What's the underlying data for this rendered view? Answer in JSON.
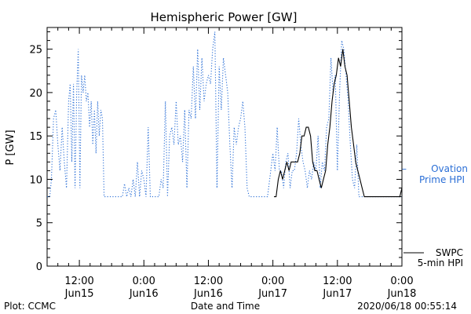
{
  "chart_data": {
    "type": "line",
    "title": "Hemispheric Power [GW]",
    "xlabel": "Date and Time",
    "ylabel": "P [GW]",
    "ylim": [
      0,
      27.5
    ],
    "xlim": [
      -18,
      48
    ],
    "yticks": [
      0,
      5,
      10,
      15,
      20,
      25
    ],
    "xticks": [
      {
        "x": -12,
        "time": "12:00",
        "date": "Jun15"
      },
      {
        "x": 0,
        "time": "0:00",
        "date": "Jun16"
      },
      {
        "x": 12,
        "time": "12:00",
        "date": "Jun16"
      },
      {
        "x": 24,
        "time": "0:00",
        "date": "Jun17"
      },
      {
        "x": 36,
        "time": "12:00",
        "date": "Jun17"
      },
      {
        "x": 48,
        "time": "0:00",
        "date": "Jun18"
      }
    ],
    "grid": false,
    "series": [
      {
        "name": "Ovation Prime HPI",
        "color": "#2b6fd6",
        "style": "dotted",
        "points": [
          [
            -18,
            8
          ],
          [
            -17.5,
            8
          ],
          [
            -17.2,
            10
          ],
          [
            -16.8,
            17
          ],
          [
            -16.4,
            18
          ],
          [
            -16,
            14
          ],
          [
            -15.6,
            11
          ],
          [
            -15.2,
            16
          ],
          [
            -14.8,
            12
          ],
          [
            -14.4,
            9
          ],
          [
            -14,
            19
          ],
          [
            -13.7,
            21
          ],
          [
            -13.4,
            12
          ],
          [
            -13.1,
            21
          ],
          [
            -12.8,
            9
          ],
          [
            -12.5,
            20
          ],
          [
            -12.2,
            25
          ],
          [
            -11.9,
            9
          ],
          [
            -11.6,
            22
          ],
          [
            -11.3,
            20
          ],
          [
            -11,
            22
          ],
          [
            -10.7,
            19
          ],
          [
            -10.4,
            20
          ],
          [
            -10.1,
            16
          ],
          [
            -9.8,
            19
          ],
          [
            -9.5,
            14
          ],
          [
            -9.2,
            18
          ],
          [
            -8.9,
            13
          ],
          [
            -8.6,
            19
          ],
          [
            -8.3,
            15
          ],
          [
            -8,
            18
          ],
          [
            -7.7,
            17
          ],
          [
            -7.4,
            8
          ],
          [
            -7,
            8
          ],
          [
            -6,
            8
          ],
          [
            -5,
            8
          ],
          [
            -4,
            8
          ],
          [
            -3.6,
            9.5
          ],
          [
            -3.2,
            8
          ],
          [
            -2.8,
            9
          ],
          [
            -2.4,
            8
          ],
          [
            -2,
            10
          ],
          [
            -1.6,
            8
          ],
          [
            -1.2,
            12
          ],
          [
            -0.8,
            8
          ],
          [
            -0.4,
            11
          ],
          [
            0,
            10
          ],
          [
            0.4,
            8
          ],
          [
            0.8,
            16
          ],
          [
            1.2,
            8
          ],
          [
            1.6,
            8
          ],
          [
            2,
            8
          ],
          [
            2.4,
            8
          ],
          [
            2.8,
            8
          ],
          [
            3.2,
            10
          ],
          [
            3.6,
            9
          ],
          [
            4,
            19
          ],
          [
            4.4,
            8
          ],
          [
            4.8,
            15
          ],
          [
            5.2,
            16
          ],
          [
            5.6,
            14
          ],
          [
            6,
            19
          ],
          [
            6.4,
            14
          ],
          [
            6.8,
            15
          ],
          [
            7.2,
            12
          ],
          [
            7.6,
            18
          ],
          [
            8,
            9
          ],
          [
            8.4,
            18
          ],
          [
            8.8,
            17
          ],
          [
            9.2,
            23
          ],
          [
            9.6,
            17
          ],
          [
            10,
            25
          ],
          [
            10.4,
            18
          ],
          [
            10.8,
            24
          ],
          [
            11.2,
            19
          ],
          [
            11.6,
            21
          ],
          [
            12,
            22
          ],
          [
            12.4,
            21
          ],
          [
            12.8,
            25
          ],
          [
            13.2,
            27
          ],
          [
            13.6,
            9
          ],
          [
            14,
            23
          ],
          [
            14.4,
            18
          ],
          [
            14.8,
            24
          ],
          [
            15.2,
            22
          ],
          [
            15.6,
            20
          ],
          [
            16,
            14
          ],
          [
            16.4,
            9
          ],
          [
            16.8,
            16
          ],
          [
            17.2,
            14
          ],
          [
            17.6,
            16
          ],
          [
            18,
            17
          ],
          [
            18.4,
            19
          ],
          [
            18.8,
            16
          ],
          [
            19.2,
            9
          ],
          [
            19.6,
            8
          ],
          [
            20,
            8
          ],
          [
            21,
            8
          ],
          [
            22,
            8
          ],
          [
            23,
            8
          ],
          [
            23.6,
            11
          ],
          [
            24,
            13
          ],
          [
            24.4,
            11
          ],
          [
            24.8,
            16
          ],
          [
            25.2,
            11
          ],
          [
            25.6,
            11
          ],
          [
            26,
            9
          ],
          [
            26.4,
            12
          ],
          [
            26.8,
            13
          ],
          [
            27.2,
            9
          ],
          [
            27.6,
            11
          ],
          [
            28,
            11
          ],
          [
            28.4,
            13
          ],
          [
            28.8,
            17
          ],
          [
            29.2,
            14
          ],
          [
            29.6,
            12
          ],
          [
            30,
            11
          ],
          [
            30.4,
            9
          ],
          [
            30.8,
            11
          ],
          [
            31.2,
            10
          ],
          [
            31.6,
            12
          ],
          [
            32,
            11
          ],
          [
            32.4,
            15
          ],
          [
            32.8,
            9
          ],
          [
            33.2,
            12
          ],
          [
            33.6,
            11
          ],
          [
            34,
            16
          ],
          [
            34.4,
            17
          ],
          [
            34.8,
            24
          ],
          [
            35.2,
            20
          ],
          [
            35.6,
            22
          ],
          [
            36,
            11
          ],
          [
            36.4,
            20
          ],
          [
            36.8,
            26
          ],
          [
            37.2,
            25
          ],
          [
            37.6,
            22
          ],
          [
            38,
            19
          ],
          [
            38.4,
            14
          ],
          [
            38.8,
            10
          ],
          [
            39.2,
            9
          ],
          [
            39.6,
            14
          ],
          [
            40,
            8
          ],
          [
            41,
            8
          ],
          [
            42,
            8
          ],
          [
            43,
            8
          ],
          [
            44,
            8
          ],
          [
            45,
            8
          ],
          [
            46,
            8
          ],
          [
            47,
            8
          ],
          [
            48,
            8
          ]
        ]
      },
      {
        "name": "SWPC 5-min HPI",
        "color": "#000000",
        "style": "solid",
        "points": [
          [
            24.2,
            8
          ],
          [
            24.6,
            8
          ],
          [
            25,
            10
          ],
          [
            25.4,
            11
          ],
          [
            25.8,
            10
          ],
          [
            26.2,
            11
          ],
          [
            26.6,
            12
          ],
          [
            27,
            11
          ],
          [
            27.4,
            12
          ],
          [
            27.8,
            12
          ],
          [
            28.2,
            12
          ],
          [
            28.6,
            12
          ],
          [
            29,
            13
          ],
          [
            29.4,
            15
          ],
          [
            29.8,
            15
          ],
          [
            30.2,
            16
          ],
          [
            30.6,
            16
          ],
          [
            31,
            15
          ],
          [
            31.4,
            12
          ],
          [
            31.8,
            11
          ],
          [
            32.2,
            11
          ],
          [
            32.6,
            10
          ],
          [
            33,
            9
          ],
          [
            33.4,
            10
          ],
          [
            33.8,
            11
          ],
          [
            34.2,
            14
          ],
          [
            34.6,
            16
          ],
          [
            35,
            19
          ],
          [
            35.4,
            21
          ],
          [
            35.8,
            22
          ],
          [
            36.2,
            24
          ],
          [
            36.6,
            23
          ],
          [
            37,
            25
          ],
          [
            37.4,
            23
          ],
          [
            37.8,
            22
          ],
          [
            38.2,
            19
          ],
          [
            38.6,
            16
          ],
          [
            39,
            14
          ],
          [
            39.4,
            12
          ],
          [
            39.8,
            11
          ],
          [
            40.2,
            10
          ],
          [
            40.6,
            9
          ],
          [
            41,
            8
          ],
          [
            42,
            8
          ],
          [
            43,
            8
          ],
          [
            44,
            8
          ],
          [
            45,
            8
          ],
          [
            46,
            8
          ],
          [
            47,
            8
          ],
          [
            47.6,
            8
          ],
          [
            48,
            9
          ]
        ]
      }
    ],
    "legend": {
      "placement": "right",
      "entries": [
        {
          "line1": "Ovation",
          "line2": "Prime HPI",
          "dash": "–",
          "color": "#2b6fd6"
        },
        {
          "line1": "SWPC",
          "line2": "5-min HPI",
          "color": "#000000"
        }
      ]
    }
  },
  "footer": {
    "left": "Plot: CCMC",
    "center": "Date and Time",
    "right": "2020/06/18 00:55:14"
  }
}
